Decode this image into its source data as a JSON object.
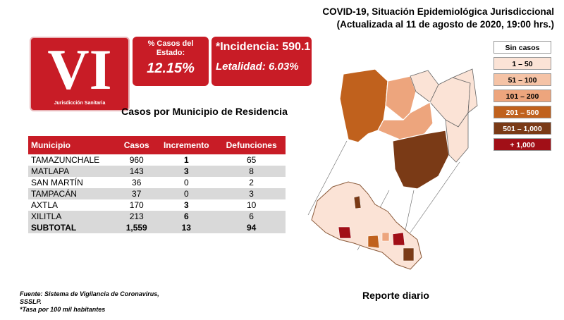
{
  "header": {
    "title_line1": "COVID-19, Situación Epidemiológica Jurisdiccional",
    "title_line2": "(Actualizada al 11 de agosto de 2020, 19:00 hrs.)"
  },
  "logo": {
    "numeral": "VI",
    "caption": "Jurisdicción Sanitaria"
  },
  "percent_box": {
    "label": "% Casos del Estado:",
    "value": "12.15%"
  },
  "incidence_box": {
    "incidence": "*Incidencia: 590.1",
    "lethality": "Letalidad: 6.03%"
  },
  "subtitle": "Casos por Municipio  de Residencia",
  "table": {
    "headers": [
      "Municipio",
      "Casos",
      "Incremento",
      "Defunciones"
    ],
    "rows": [
      [
        "TAMAZUNCHALE",
        "960",
        "1",
        "65"
      ],
      [
        "MATLAPA",
        "143",
        "3",
        "8"
      ],
      [
        "SAN MARTÍN",
        "36",
        "0",
        "2"
      ],
      [
        "TAMPACÁN",
        "37",
        "0",
        "3"
      ],
      [
        "AXTLA",
        "170",
        "3",
        "10"
      ],
      [
        "XILITLA",
        "213",
        "6",
        "6"
      ]
    ],
    "subtotal": [
      "SUBTOTAL",
      "1,559",
      "13",
      "94"
    ]
  },
  "legend": {
    "items": [
      {
        "label": "Sin casos",
        "color": "#ffffff",
        "text_color": "#000000"
      },
      {
        "label": "1 – 50",
        "color": "#fbe3d6",
        "text_color": "#000000"
      },
      {
        "label": "51 – 100",
        "color": "#f5c3a6",
        "text_color": "#000000"
      },
      {
        "label": "101 – 200",
        "color": "#eda57d",
        "text_color": "#000000"
      },
      {
        "label": "201 – 500",
        "color": "#c0611d",
        "text_color": "#ffffff"
      },
      {
        "label": "501 – 1,000",
        "color": "#7a3a16",
        "text_color": "#ffffff"
      },
      {
        "label": "+ 1,000",
        "color": "#a10f17",
        "text_color": "#ffffff"
      }
    ]
  },
  "footnote": {
    "line1": "Fuente:  Sistema  de  Vigilancia  de  Coronavirus,",
    "line2": "SSSLP.",
    "line3": "*Tasa por 100 mil habitantes"
  },
  "report_label": "Reporte diario"
}
